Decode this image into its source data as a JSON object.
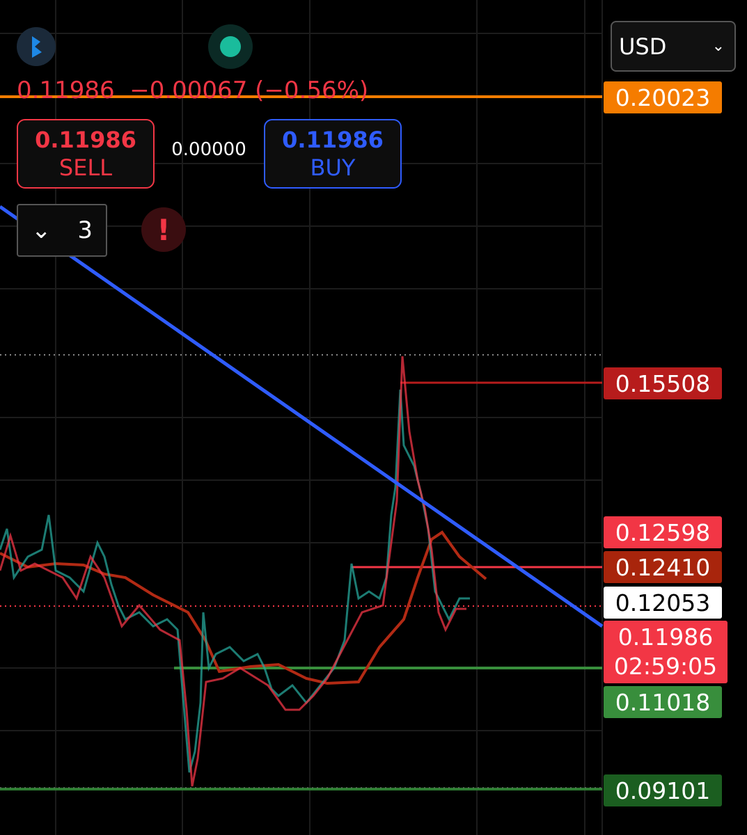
{
  "header": {
    "currency": "USD"
  },
  "ticker": {
    "price": "0.11986",
    "change": "−0.00067",
    "change_pct": "(−0.56%)"
  },
  "trade": {
    "sell_price": "0.11986",
    "sell_label": "SELL",
    "spread": "0.00000",
    "buy_price": "0.11986",
    "buy_label": "BUY"
  },
  "orders": {
    "count": "3"
  },
  "price_labels": [
    "0.20023",
    "0.15508",
    "0.12598",
    "0.12410",
    "0.12053",
    "0.11986",
    "0.11018",
    "0.09101"
  ],
  "countdown": "02:59:05"
}
